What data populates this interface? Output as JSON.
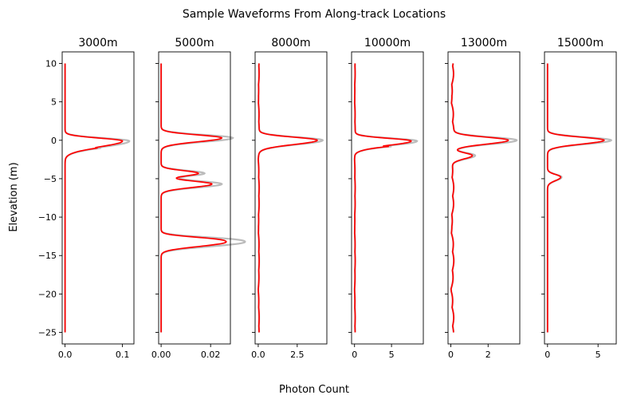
{
  "figure": {
    "title": "Sample Waveforms From Along-track Locations",
    "xlabel": "Photon Count",
    "ylabel": "Elevation (m)"
  },
  "colors": {
    "waveform": "#ff0000",
    "fit": "#bbbbbb",
    "axes": "#000000"
  },
  "chart_data": [
    {
      "type": "line",
      "title": "3000m",
      "xlim": [
        -0.005,
        0.12
      ],
      "ylim": [
        -26.5,
        11.5
      ],
      "xticks": [
        0.0,
        0.1
      ],
      "xtick_labels": [
        "0.0",
        "0.1"
      ],
      "yticks": [
        10,
        5,
        0,
        -5,
        -10,
        -15,
        -20,
        -25
      ],
      "ytick_labels": [
        "10",
        "5",
        "0",
        "−5",
        "−10",
        "−15",
        "−20",
        "−25"
      ],
      "peaks": [
        {
          "center": -0.1,
          "amp": 0.1,
          "fit_amp": 0.112,
          "sigma": 0.38,
          "sigma_low": 0.75
        }
      ],
      "tail": {
        "start": -1.0,
        "end": -2.5,
        "amp": 0.008
      },
      "baseline": [
        0.0,
        0.0,
        0.0
      ]
    },
    {
      "type": "line",
      "title": "5000m",
      "xlim": [
        -0.001,
        0.028
      ],
      "ylim": [
        -26.5,
        11.5
      ],
      "xticks": [
        0.0,
        0.02
      ],
      "xtick_labels": [
        "0.00",
        "0.02"
      ],
      "yticks": [
        10,
        5,
        0,
        -5,
        -10,
        -15,
        -20,
        -25
      ],
      "ytick_labels": [
        "",
        "",
        "",
        "",
        "",
        "",
        "",
        ""
      ],
      "peaks": [
        {
          "center": 0.3,
          "amp": 0.0245,
          "fit_amp": 0.029,
          "sigma": 0.4,
          "sigma_low": 0.5
        },
        {
          "center": -4.3,
          "amp": 0.015,
          "fit_amp": 0.0175,
          "sigma": 0.35,
          "sigma_low": 0.35
        },
        {
          "center": -5.7,
          "amp": 0.0205,
          "fit_amp": 0.0245,
          "sigma": 0.4,
          "sigma_low": 0.45
        },
        {
          "center": -12.9,
          "amp": 0.019,
          "fit_amp": 0.0245,
          "sigma": 0.35,
          "sigma_low": 0.35
        },
        {
          "center": -13.5,
          "amp": 0.019,
          "fit_amp": 0.0245,
          "sigma": 0.35,
          "sigma_low": 0.45
        }
      ],
      "baseline": [
        0.0,
        0.0,
        0.0
      ]
    },
    {
      "type": "line",
      "title": "8000m",
      "xlim": [
        -0.2,
        4.4
      ],
      "ylim": [
        -26.5,
        11.5
      ],
      "xticks": [
        0.0,
        2.5
      ],
      "xtick_labels": [
        "0.0",
        "2.5"
      ],
      "yticks": [
        10,
        5,
        0,
        -5,
        -10,
        -15,
        -20,
        -25
      ],
      "ytick_labels": [
        "",
        "",
        "",
        "",
        "",
        "",
        "",
        ""
      ],
      "peaks": [
        {
          "center": 0.0,
          "amp": 3.75,
          "fit_amp": 4.1,
          "sigma": 0.4,
          "sigma_low": 0.55
        }
      ],
      "baseline": [
        0.0,
        0.02,
        0.04
      ]
    },
    {
      "type": "line",
      "title": "10000m",
      "xlim": [
        -0.4,
        9.3
      ],
      "ylim": [
        -26.5,
        11.5
      ],
      "xticks": [
        0,
        5
      ],
      "xtick_labels": [
        "0",
        "5"
      ],
      "yticks": [
        10,
        5,
        0,
        -5,
        -10,
        -15,
        -20,
        -25
      ],
      "ytick_labels": [
        "",
        "",
        "",
        "",
        "",
        "",
        "",
        ""
      ],
      "peaks": [
        {
          "center": -0.1,
          "amp": 7.6,
          "fit_amp": 8.4,
          "sigma": 0.35,
          "sigma_low": 0.55
        }
      ],
      "tail": {
        "start": -0.8,
        "end": -2.0,
        "amp": 1.2
      },
      "baseline": [
        0.0,
        0.03,
        0.06
      ]
    },
    {
      "type": "line",
      "title": "13000m",
      "xlim": [
        -0.15,
        3.7
      ],
      "ylim": [
        -26.5,
        11.5
      ],
      "xticks": [
        0,
        2
      ],
      "xtick_labels": [
        "0",
        "2"
      ],
      "yticks": [
        10,
        5,
        0,
        -5,
        -10,
        -15,
        -20,
        -25
      ],
      "ytick_labels": [
        "",
        "",
        "",
        "",
        "",
        "",
        "",
        ""
      ],
      "peaks": [
        {
          "center": 0.0,
          "amp": 3.0,
          "fit_amp": 3.45,
          "sigma": 0.4,
          "sigma_low": 0.5
        },
        {
          "center": -2.0,
          "amp": 1.1,
          "fit_amp": 1.25,
          "sigma": 0.35,
          "sigma_low": 0.45
        }
      ],
      "baseline": [
        0.0,
        0.06,
        0.1
      ]
    },
    {
      "type": "line",
      "title": "15000m",
      "xlim": [
        -0.3,
        6.8
      ],
      "ylim": [
        -26.5,
        11.5
      ],
      "xticks": [
        0,
        5
      ],
      "xtick_labels": [
        "0",
        "5"
      ],
      "yticks": [
        10,
        5,
        0,
        -5,
        -10,
        -15,
        -20,
        -25
      ],
      "ytick_labels": [
        "",
        "",
        "",
        "",
        "",
        "",
        "",
        ""
      ],
      "peaks": [
        {
          "center": 0.0,
          "amp": 5.6,
          "fit_amp": 6.3,
          "sigma": 0.4,
          "sigma_low": 0.5
        },
        {
          "center": -4.8,
          "amp": 1.3,
          "fit_amp": 1.4,
          "sigma": 0.35,
          "sigma_low": 0.45
        }
      ],
      "baseline": [
        0.0,
        0.0,
        0.0
      ]
    }
  ]
}
